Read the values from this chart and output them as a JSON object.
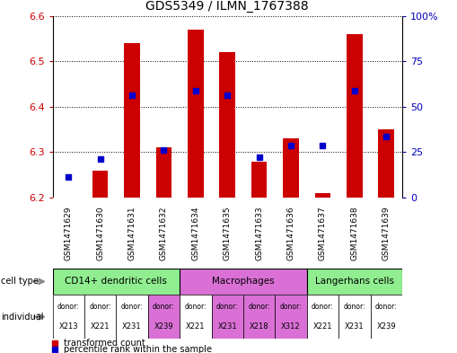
{
  "title": "GDS5349 / ILMN_1767388",
  "samples": [
    "GSM1471629",
    "GSM1471630",
    "GSM1471631",
    "GSM1471632",
    "GSM1471634",
    "GSM1471635",
    "GSM1471633",
    "GSM1471636",
    "GSM1471637",
    "GSM1471638",
    "GSM1471639"
  ],
  "red_values": [
    6.2,
    6.26,
    6.54,
    6.31,
    6.57,
    6.52,
    6.28,
    6.33,
    6.21,
    6.56,
    6.35
  ],
  "blue_values": [
    6.245,
    6.285,
    6.425,
    6.305,
    6.435,
    6.425,
    6.29,
    6.315,
    6.315,
    6.435,
    6.335
  ],
  "ymin": 6.2,
  "ymax": 6.6,
  "y_ticks": [
    6.2,
    6.3,
    6.4,
    6.5,
    6.6
  ],
  "right_y_ticks": [
    0,
    25,
    50,
    75,
    100
  ],
  "right_y_labels": [
    "0",
    "25",
    "50",
    "75",
    "100%"
  ],
  "cell_types": [
    {
      "label": "CD14+ dendritic cells",
      "start": 0,
      "end": 3,
      "color": "#90EE90"
    },
    {
      "label": "Macrophages",
      "start": 4,
      "end": 7,
      "color": "#DA70D6"
    },
    {
      "label": "Langerhans cells",
      "start": 8,
      "end": 10,
      "color": "#90EE90"
    }
  ],
  "donors": [
    "X213",
    "X221",
    "X231",
    "X239",
    "X221",
    "X231",
    "X218",
    "X312",
    "X221",
    "X231",
    "X239"
  ],
  "donor_colors": [
    "#FFFFFF",
    "#FFFFFF",
    "#FFFFFF",
    "#DA70D6",
    "#FFFFFF",
    "#DA70D6",
    "#DA70D6",
    "#DA70D6",
    "#FFFFFF",
    "#FFFFFF",
    "#FFFFFF"
  ],
  "bar_color": "#CC0000",
  "blue_color": "#0000CC",
  "tick_label_color_left": "#CC0000",
  "tick_label_color_right": "#0000BB",
  "bg_color": "#FFFFFF",
  "gsm_bg_color": "#C8C8C8",
  "cell_type_border": "#008000",
  "indiv_border": "#888888"
}
